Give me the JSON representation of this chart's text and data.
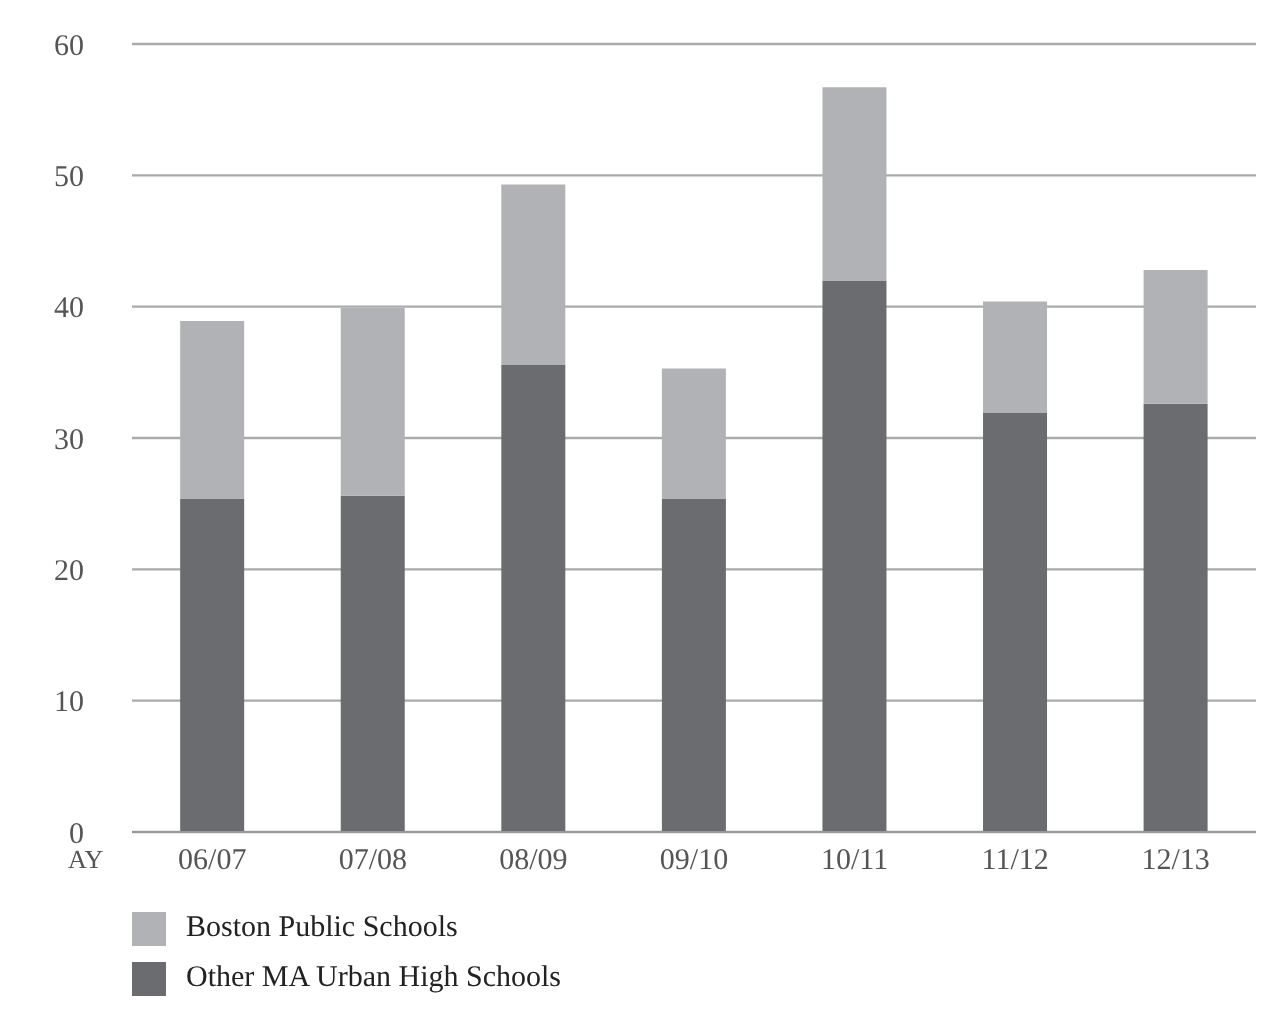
{
  "chart_data": {
    "type": "bar",
    "stacked": true,
    "xlabel": "AY",
    "categories": [
      "06/07",
      "07/08",
      "08/09",
      "09/10",
      "10/11",
      "11/12",
      "12/13"
    ],
    "series": [
      {
        "name": "Other MA Urban High Schools",
        "color": "#6b6c70",
        "values": [
          25.4,
          25.6,
          35.6,
          25.4,
          42.0,
          31.9,
          32.6
        ]
      },
      {
        "name": "Boston Public Schools",
        "color": "#b1b2b5",
        "values": [
          13.5,
          14.3,
          13.7,
          9.9,
          14.7,
          8.5,
          10.2
        ]
      }
    ],
    "ylim": [
      0,
      60
    ],
    "yticks": [
      0,
      10,
      20,
      30,
      40,
      50,
      60
    ],
    "grid": "y",
    "legend": "bottom"
  }
}
